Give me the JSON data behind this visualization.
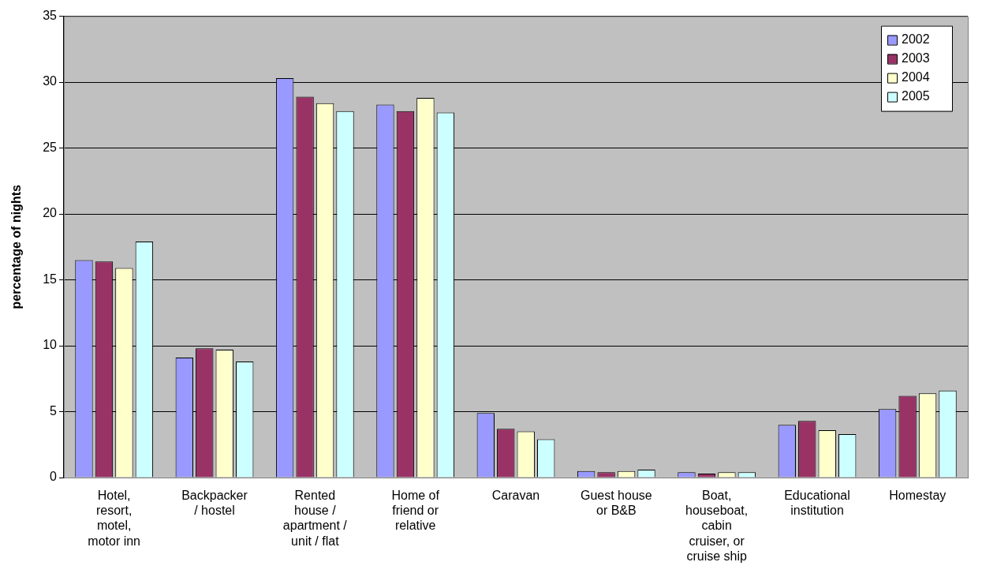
{
  "chart_data": {
    "type": "bar",
    "ylabel": "percentage of nights",
    "categories": [
      "Hotel, resort, motel, motor inn",
      "Backpacker / hostel",
      "Rented house / apartment / unit / flat",
      "Home of friend or relative",
      "Caravan",
      "Guest house or B&B",
      "Boat, houseboat, cabin cruiser, or cruise ship",
      "Educational institution",
      "Homestay"
    ],
    "series": [
      {
        "name": "2002",
        "color": "#9999ff",
        "values": [
          16.5,
          9.1,
          30.3,
          28.3,
          4.9,
          0.5,
          0.4,
          4.0,
          5.2
        ]
      },
      {
        "name": "2003",
        "color": "#993366",
        "values": [
          16.4,
          9.8,
          28.9,
          27.8,
          3.7,
          0.4,
          0.3,
          4.3,
          6.2
        ]
      },
      {
        "name": "2004",
        "color": "#ffffcc",
        "values": [
          15.9,
          9.7,
          28.4,
          28.8,
          3.5,
          0.5,
          0.4,
          3.6,
          6.4
        ]
      },
      {
        "name": "2005",
        "color": "#ccffff",
        "values": [
          17.9,
          8.8,
          27.8,
          27.7,
          2.9,
          0.6,
          0.4,
          3.3,
          6.6
        ]
      }
    ],
    "ylim": [
      0,
      35
    ],
    "yticks": [
      0,
      5,
      10,
      15,
      20,
      25,
      30,
      35
    ],
    "grid": "y",
    "legend": "top right"
  }
}
